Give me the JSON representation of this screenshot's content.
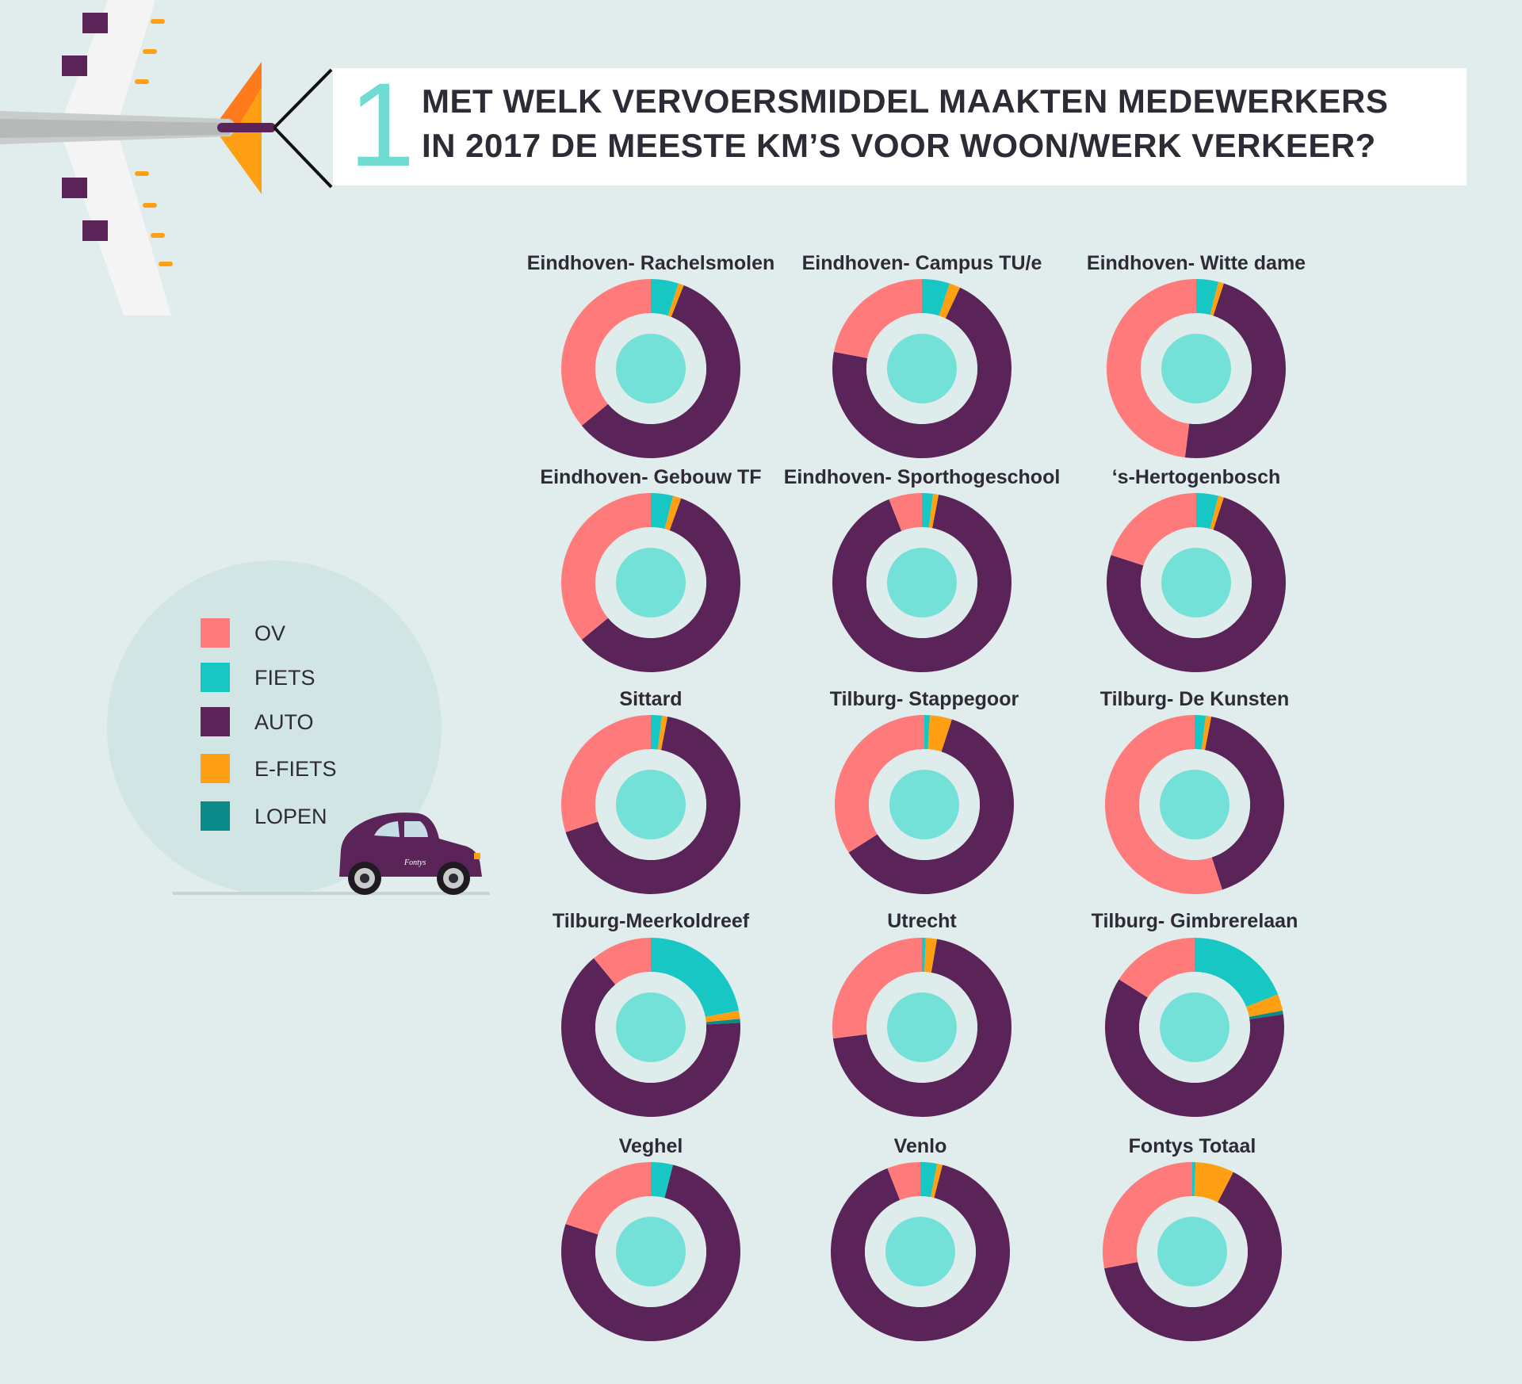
{
  "header": {
    "number": "1",
    "title_line1": "MET WELK VERVOERSMIDDEL MAAKTEN MEDEWERKERS",
    "title_line2": "IN 2017 DE MEESTE KM’S VOOR WOON/WERK VERKEER?"
  },
  "legend": {
    "items": [
      {
        "label": "OV",
        "color": "#ff7b7b"
      },
      {
        "label": "FIETS",
        "color": "#16c7c4"
      },
      {
        "label": "AUTO",
        "color": "#5a2459"
      },
      {
        "label": "E-FIETS",
        "color": "#ff9f14"
      },
      {
        "label": "LOPEN",
        "color": "#0a8a88"
      }
    ]
  },
  "car": {
    "brand_text": "Fontys"
  },
  "colors": {
    "ov": "#ff7b7b",
    "fiets": "#16c7c4",
    "auto": "#5a2459",
    "efiets": "#ff9f14",
    "lopen": "#0a8a88",
    "inner_ring": "#deecec",
    "center": "#74e1d8"
  },
  "chart_data": {
    "type": "pie",
    "variant": "donut",
    "series_order": [
      "FIETS",
      "E-FIETS",
      "LOPEN",
      "AUTO",
      "OV"
    ],
    "charts": [
      {
        "title": "Eindhoven- Rachelsmolen",
        "values": {
          "FIETS": 5,
          "E-FIETS": 1,
          "LOPEN": 0,
          "AUTO": 58,
          "OV": 36
        }
      },
      {
        "title": "Eindhoven- Campus TU/e",
        "values": {
          "FIETS": 5,
          "E-FIETS": 2,
          "LOPEN": 0,
          "AUTO": 71,
          "OV": 22
        }
      },
      {
        "title": "Eindhoven- Witte dame",
        "values": {
          "FIETS": 4,
          "E-FIETS": 1,
          "LOPEN": 0,
          "AUTO": 47,
          "OV": 48
        }
      },
      {
        "title": "Eindhoven- Gebouw TF",
        "values": {
          "FIETS": 4,
          "E-FIETS": 1.5,
          "LOPEN": 0,
          "AUTO": 58.5,
          "OV": 36
        }
      },
      {
        "title": "Eindhoven- Sporthogeschool",
        "values": {
          "FIETS": 2,
          "E-FIETS": 1,
          "LOPEN": 0,
          "AUTO": 91,
          "OV": 6
        }
      },
      {
        "title": "‘s-Hertogenbosch",
        "values": {
          "FIETS": 4,
          "E-FIETS": 1,
          "LOPEN": 0,
          "AUTO": 75,
          "OV": 20
        }
      },
      {
        "title": "Sittard",
        "values": {
          "FIETS": 2,
          "E-FIETS": 1,
          "LOPEN": 0,
          "AUTO": 67,
          "OV": 30
        }
      },
      {
        "title": "Tilburg- Stappegoor",
        "values": {
          "FIETS": 1,
          "E-FIETS": 4,
          "LOPEN": 0,
          "AUTO": 61,
          "OV": 34
        }
      },
      {
        "title": "Tilburg- De Kunsten",
        "values": {
          "FIETS": 2,
          "E-FIETS": 1,
          "LOPEN": 0,
          "AUTO": 42,
          "OV": 55
        }
      },
      {
        "title": "Tilburg-Meerkoldreef",
        "values": {
          "FIETS": 22,
          "E-FIETS": 1.5,
          "LOPEN": 0.7,
          "AUTO": 64.8,
          "OV": 11
        }
      },
      {
        "title": "Utrecht",
        "values": {
          "FIETS": 0.7,
          "E-FIETS": 2,
          "LOPEN": 0,
          "AUTO": 70.3,
          "OV": 27
        }
      },
      {
        "title": "Tilburg- Gimbrerelaan",
        "values": {
          "FIETS": 19,
          "E-FIETS": 3,
          "LOPEN": 0.7,
          "AUTO": 61.3,
          "OV": 16
        }
      },
      {
        "title": "Veghel",
        "values": {
          "FIETS": 4,
          "E-FIETS": 0,
          "LOPEN": 0,
          "AUTO": 76,
          "OV": 20
        }
      },
      {
        "title": "Venlo",
        "values": {
          "FIETS": 3,
          "E-FIETS": 1,
          "LOPEN": 0,
          "AUTO": 90,
          "OV": 6
        }
      },
      {
        "title": "Fontys Totaal",
        "values": {
          "FIETS": 0.6,
          "E-FIETS": 7,
          "LOPEN": 0,
          "AUTO": 64.4,
          "OV": 28
        }
      }
    ]
  }
}
